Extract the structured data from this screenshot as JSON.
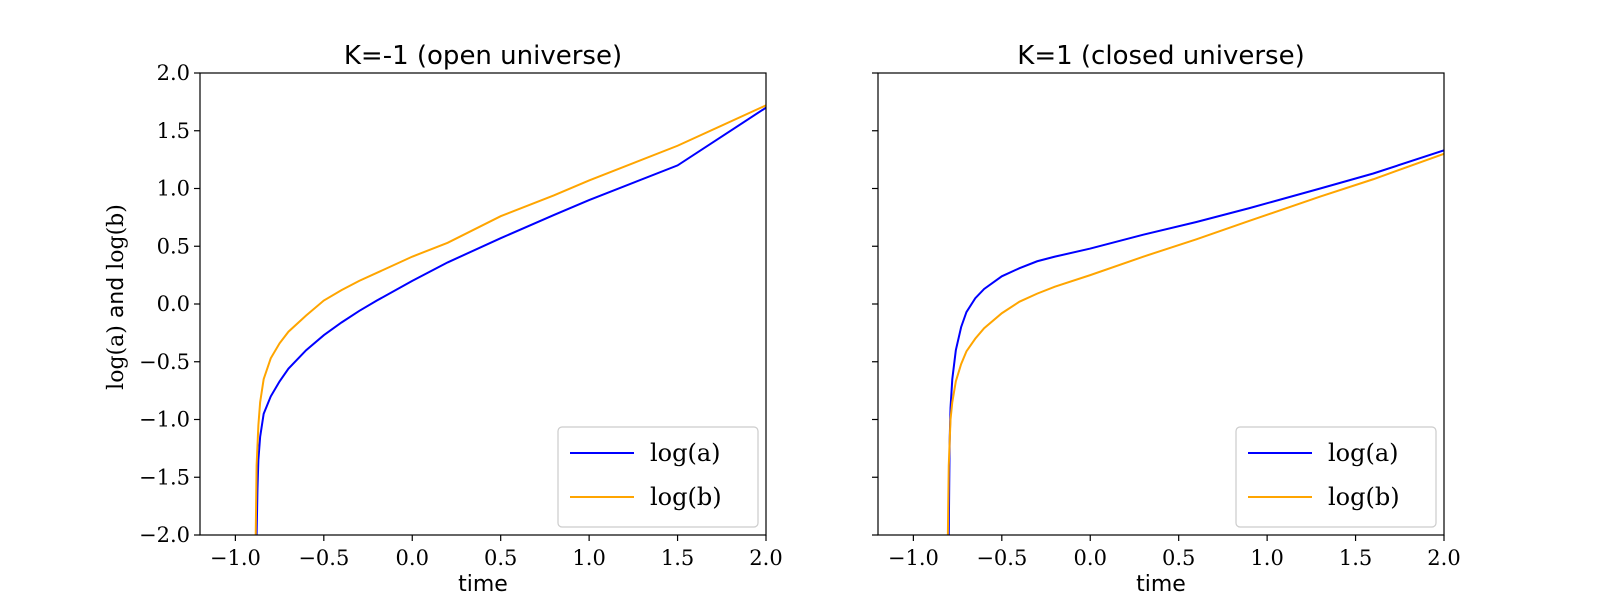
{
  "figure": {
    "ylabel": {
      "math1": "log(a)",
      "word": " and ",
      "math2": "log(b)"
    }
  },
  "chart_data": [
    {
      "type": "line",
      "title": "K=-1 (open universe)",
      "xlabel": "time",
      "ylabel": "log(a) and log(b)",
      "xlim": [
        -1.2,
        2.0
      ],
      "ylim": [
        -2.0,
        2.0
      ],
      "xticks": [
        "−1.0",
        "−0.5",
        "0.0",
        "0.5",
        "1.0",
        "1.5",
        "2.0"
      ],
      "xtick_values": [
        -1.0,
        -0.5,
        0.0,
        0.5,
        1.0,
        1.5,
        2.0
      ],
      "yticks": [
        "2.0",
        "1.5",
        "1.0",
        "0.5",
        "0.0",
        "−0.5",
        "−1.0",
        "−1.5",
        "−2.0"
      ],
      "ytick_values": [
        2.0,
        1.5,
        1.0,
        0.5,
        0.0,
        -0.5,
        -1.0,
        -1.5,
        -2.0
      ],
      "show_yticklabels": true,
      "grid": false,
      "legend_position": "lower right",
      "series": [
        {
          "name": "log(a)",
          "color": "#0000ff",
          "x": [
            -0.88,
            -0.875,
            -0.87,
            -0.86,
            -0.84,
            -0.8,
            -0.75,
            -0.7,
            -0.6,
            -0.5,
            -0.4,
            -0.3,
            -0.2,
            0.0,
            0.2,
            0.5,
            0.8,
            1.0,
            1.5,
            2.0
          ],
          "y": [
            -2.0,
            -1.6,
            -1.35,
            -1.15,
            -0.95,
            -0.8,
            -0.67,
            -0.56,
            -0.4,
            -0.27,
            -0.16,
            -0.06,
            0.03,
            0.2,
            0.36,
            0.57,
            0.77,
            0.9,
            1.2,
            1.7
          ]
        },
        {
          "name": "log(b)",
          "color": "#ffa500",
          "x": [
            -0.885,
            -0.88,
            -0.87,
            -0.86,
            -0.84,
            -0.8,
            -0.75,
            -0.7,
            -0.6,
            -0.5,
            -0.4,
            -0.3,
            -0.2,
            0.0,
            0.2,
            0.5,
            0.8,
            1.0,
            1.5,
            2.0
          ],
          "y": [
            -2.0,
            -1.4,
            -1.05,
            -0.85,
            -0.65,
            -0.47,
            -0.34,
            -0.24,
            -0.1,
            0.03,
            0.12,
            0.2,
            0.27,
            0.41,
            0.53,
            0.76,
            0.94,
            1.07,
            1.37,
            1.72
          ]
        }
      ]
    },
    {
      "type": "line",
      "title": "K=1 (closed universe)",
      "xlabel": "time",
      "xlim": [
        -1.2,
        2.0
      ],
      "ylim": [
        -2.0,
        2.0
      ],
      "xticks": [
        "−1.0",
        "−0.5",
        "0.0",
        "0.5",
        "1.0",
        "1.5",
        "2.0"
      ],
      "xtick_values": [
        -1.0,
        -0.5,
        0.0,
        0.5,
        1.0,
        1.5,
        2.0
      ],
      "ytick_values": [
        2.0,
        1.5,
        1.0,
        0.5,
        0.0,
        -0.5,
        -1.0,
        -1.5,
        -2.0
      ],
      "show_yticklabels": false,
      "grid": false,
      "legend_position": "lower right",
      "series": [
        {
          "name": "log(a)",
          "color": "#0000ff",
          "x": [
            -0.8,
            -0.795,
            -0.79,
            -0.78,
            -0.76,
            -0.73,
            -0.7,
            -0.65,
            -0.6,
            -0.5,
            -0.4,
            -0.3,
            -0.2,
            0.0,
            0.3,
            0.6,
            0.9,
            1.3,
            1.6,
            2.0
          ],
          "y": [
            -2.0,
            -1.2,
            -0.9,
            -0.65,
            -0.4,
            -0.2,
            -0.07,
            0.05,
            0.13,
            0.24,
            0.31,
            0.37,
            0.41,
            0.48,
            0.6,
            0.71,
            0.83,
            1.0,
            1.13,
            1.33
          ]
        },
        {
          "name": "log(b)",
          "color": "#ffa500",
          "x": [
            -0.805,
            -0.8,
            -0.79,
            -0.78,
            -0.76,
            -0.73,
            -0.7,
            -0.65,
            -0.6,
            -0.5,
            -0.4,
            -0.3,
            -0.2,
            0.0,
            0.3,
            0.6,
            0.9,
            1.3,
            1.6,
            2.0
          ],
          "y": [
            -2.0,
            -1.4,
            -1.0,
            -0.85,
            -0.67,
            -0.52,
            -0.41,
            -0.3,
            -0.21,
            -0.08,
            0.02,
            0.09,
            0.15,
            0.25,
            0.41,
            0.56,
            0.72,
            0.93,
            1.08,
            1.3
          ]
        }
      ]
    }
  ]
}
